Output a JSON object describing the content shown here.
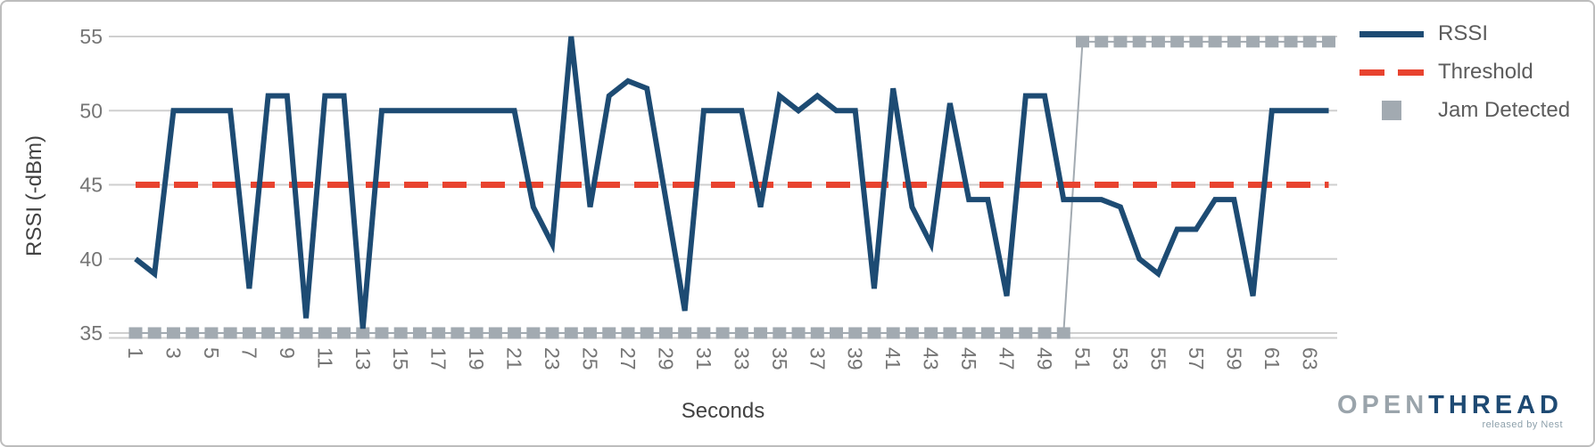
{
  "chart_data": {
    "type": "line",
    "title": "",
    "xlabel": "Seconds",
    "ylabel": "RSSI (-dBm)",
    "xlim": [
      0,
      64.5
    ],
    "ylim": [
      35,
      55
    ],
    "grid": "horizontal",
    "legend_position": "outside-top-right",
    "y_ticks": [
      55,
      50,
      45,
      40,
      35
    ],
    "x_tick_labels": [
      1,
      3,
      5,
      7,
      9,
      11,
      13,
      15,
      17,
      19,
      21,
      23,
      25,
      27,
      29,
      31,
      33,
      35,
      37,
      39,
      41,
      43,
      45,
      47,
      49,
      51,
      53,
      55,
      57,
      59,
      61,
      63
    ],
    "x": [
      1,
      2,
      3,
      4,
      5,
      6,
      7,
      8,
      9,
      10,
      11,
      12,
      13,
      14,
      15,
      16,
      17,
      18,
      19,
      20,
      21,
      22,
      23,
      24,
      25,
      26,
      27,
      28,
      29,
      30,
      31,
      32,
      33,
      34,
      35,
      36,
      37,
      38,
      39,
      40,
      41,
      42,
      43,
      44,
      45,
      46,
      47,
      48,
      49,
      50,
      51,
      52,
      53,
      54,
      55,
      56,
      57,
      58,
      59,
      60,
      61,
      62,
      63,
      64
    ],
    "series": [
      {
        "name": "RSSI",
        "style": "solid-line",
        "color": "#1d4b73",
        "values": [
          40,
          39,
          50,
          50,
          50,
          50,
          38,
          51,
          51,
          36,
          51,
          51,
          35.3,
          50,
          50,
          50,
          50,
          50,
          50,
          50,
          50,
          43.5,
          41,
          55,
          43.5,
          51,
          52,
          51.5,
          44,
          36.5,
          50,
          50,
          50,
          43.5,
          51,
          50,
          51,
          50,
          50,
          38,
          51.5,
          43.5,
          41,
          50.5,
          44,
          44,
          37.5,
          51,
          51,
          44,
          44,
          44,
          43.5,
          40,
          39,
          42,
          42,
          44,
          44,
          37.5,
          50,
          50,
          50,
          50
        ]
      },
      {
        "name": "Threshold",
        "style": "dashed-line",
        "color": "#e8432f",
        "value": 45
      },
      {
        "name": "Jam Detected",
        "style": "square-markers",
        "color": "#a2aab1",
        "false_level": 35,
        "true_level": 54.65,
        "values": [
          35,
          35,
          35,
          35,
          35,
          35,
          35,
          35,
          35,
          35,
          35,
          35,
          35,
          35,
          35,
          35,
          35,
          35,
          35,
          35,
          35,
          35,
          35,
          35,
          35,
          35,
          35,
          35,
          35,
          35,
          35,
          35,
          35,
          35,
          35,
          35,
          35,
          35,
          35,
          35,
          35,
          35,
          35,
          35,
          35,
          35,
          35,
          35,
          35,
          35,
          54.65,
          54.65,
          54.65,
          54.65,
          54.65,
          54.65,
          54.65,
          54.65,
          54.65,
          54.65,
          54.65,
          54.65,
          54.65,
          54.65
        ]
      }
    ],
    "colors": {
      "grid": "#cfcfcf",
      "tick_text": "#757575",
      "axis_title_text": "#424242",
      "legend_text": "#5c5c5c"
    }
  },
  "branding": {
    "logo_open": "OPEN",
    "logo_thread": "THREAD",
    "logo_sub": "released by Nest"
  }
}
